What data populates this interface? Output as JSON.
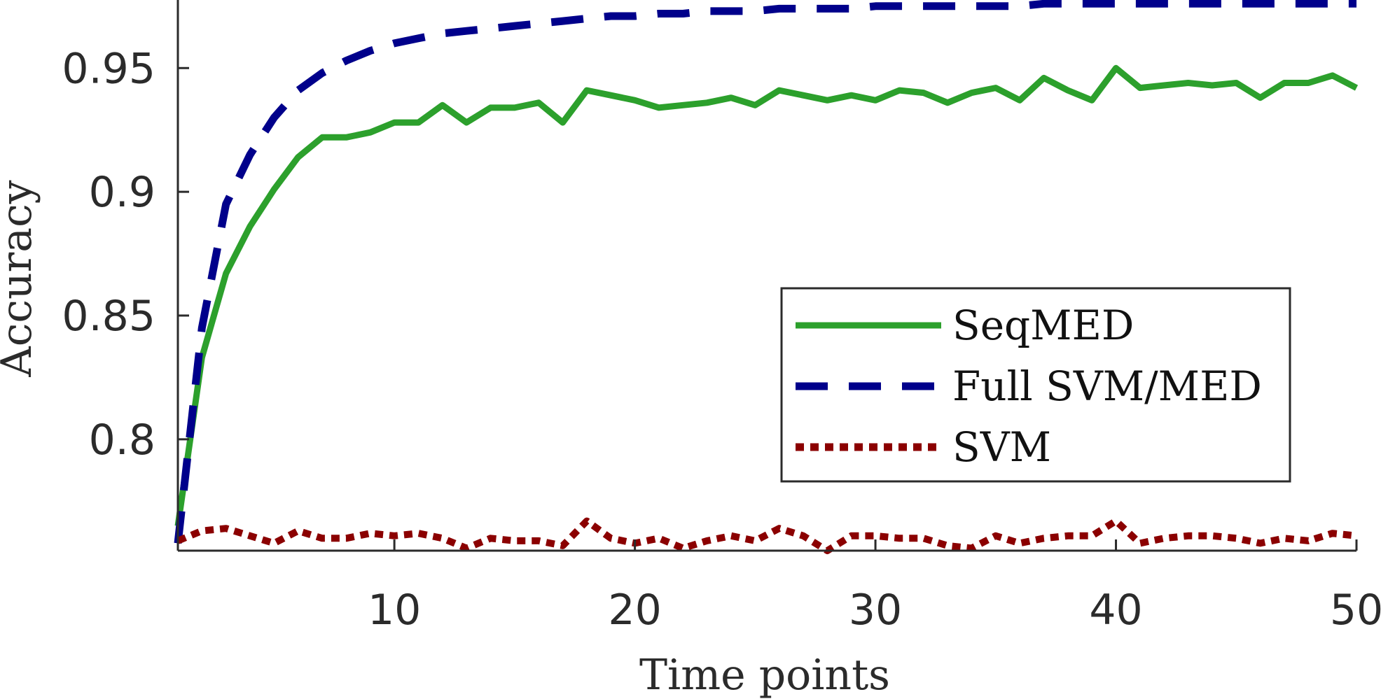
{
  "chart_data": {
    "type": "line",
    "title": "",
    "xlabel": "Time points",
    "ylabel": "Accuracy",
    "xlim": [
      1,
      50
    ],
    "ylim": [
      0.755,
      0.9775
    ],
    "xticks": [
      10,
      20,
      30,
      40,
      50
    ],
    "xtick_labels": [
      "10",
      "20",
      "30",
      "40",
      "50"
    ],
    "yticks": [
      0.8,
      0.85,
      0.9,
      0.95
    ],
    "ytick_labels": [
      "0.8",
      "0.85",
      "0.9",
      "0.95"
    ],
    "grid": false,
    "legend_position": "center-right",
    "x": [
      1,
      2,
      3,
      4,
      5,
      6,
      7,
      8,
      9,
      10,
      11,
      12,
      13,
      14,
      15,
      16,
      17,
      18,
      19,
      20,
      21,
      22,
      23,
      24,
      25,
      26,
      27,
      28,
      29,
      30,
      31,
      32,
      33,
      34,
      35,
      36,
      37,
      38,
      39,
      40,
      41,
      42,
      43,
      44,
      45,
      46,
      47,
      48,
      49,
      50
    ],
    "series": [
      {
        "name": "SeqMED",
        "color": "#2ca02c",
        "style": "solid",
        "values": [
          0.765,
          0.833,
          0.867,
          0.886,
          0.901,
          0.914,
          0.922,
          0.922,
          0.924,
          0.928,
          0.928,
          0.935,
          0.928,
          0.934,
          0.934,
          0.936,
          0.928,
          0.941,
          0.939,
          0.937,
          0.934,
          0.935,
          0.936,
          0.938,
          0.935,
          0.941,
          0.939,
          0.937,
          0.939,
          0.937,
          0.941,
          0.94,
          0.936,
          0.94,
          0.942,
          0.937,
          0.946,
          0.941,
          0.937,
          0.95,
          0.942,
          0.943,
          0.944,
          0.943,
          0.944,
          0.938,
          0.944,
          0.944,
          0.947,
          0.942
        ]
      },
      {
        "name": "Full SVM/MED",
        "color": "#00008b",
        "style": "dashed",
        "values": [
          0.758,
          0.845,
          0.895,
          0.915,
          0.93,
          0.941,
          0.948,
          0.953,
          0.957,
          0.96,
          0.962,
          0.964,
          0.965,
          0.966,
          0.967,
          0.968,
          0.969,
          0.97,
          0.971,
          0.971,
          0.972,
          0.972,
          0.973,
          0.973,
          0.973,
          0.974,
          0.974,
          0.974,
          0.974,
          0.975,
          0.975,
          0.975,
          0.975,
          0.975,
          0.975,
          0.975,
          0.976,
          0.976,
          0.976,
          0.976,
          0.976,
          0.976,
          0.976,
          0.976,
          0.976,
          0.976,
          0.976,
          0.976,
          0.976,
          0.976
        ]
      },
      {
        "name": "SVM",
        "color": "#8b0000",
        "style": "dotted",
        "values": [
          0.759,
          0.763,
          0.764,
          0.761,
          0.758,
          0.763,
          0.76,
          0.76,
          0.762,
          0.761,
          0.762,
          0.76,
          0.756,
          0.76,
          0.759,
          0.759,
          0.757,
          0.767,
          0.76,
          0.758,
          0.76,
          0.756,
          0.759,
          0.761,
          0.759,
          0.764,
          0.761,
          0.755,
          0.761,
          0.761,
          0.76,
          0.76,
          0.757,
          0.756,
          0.761,
          0.758,
          0.76,
          0.761,
          0.761,
          0.767,
          0.758,
          0.76,
          0.761,
          0.761,
          0.76,
          0.758,
          0.76,
          0.759,
          0.762,
          0.761
        ]
      }
    ]
  }
}
